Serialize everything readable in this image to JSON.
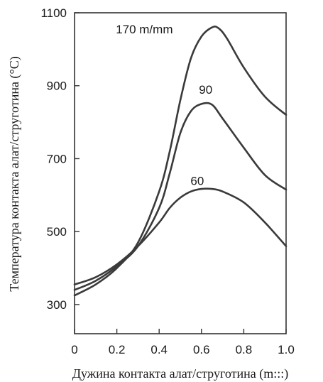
{
  "chart_data": {
    "type": "line",
    "title": "",
    "xlabel": "Дужина контакта алат/струготина (m:::)",
    "ylabel": "Температура контакта алат/струготина (°C)",
    "xlim": [
      0,
      1.0
    ],
    "ylim": [
      220,
      1100
    ],
    "x_ticks": [
      0,
      0.2,
      0.4,
      0.6,
      0.8,
      1.0
    ],
    "x_tick_labels": [
      "0",
      "0.2",
      "0.4",
      "0.6",
      "0.8",
      "1.0"
    ],
    "y_ticks": [
      300,
      500,
      700,
      900,
      1100
    ],
    "y_tick_labels": [
      "300",
      "500",
      "700",
      "900",
      "1100"
    ],
    "grid": false,
    "series": [
      {
        "name": "170 m/mm",
        "label_at": [
          0.33,
          1055
        ],
        "x": [
          0,
          0.1,
          0.2,
          0.3,
          0.4,
          0.45,
          0.5,
          0.55,
          0.6,
          0.65,
          0.68,
          0.72,
          0.8,
          0.9,
          1.0
        ],
        "y": [
          325,
          355,
          400,
          470,
          610,
          720,
          860,
          975,
          1035,
          1060,
          1058,
          1030,
          950,
          870,
          820
        ]
      },
      {
        "name": "90",
        "label_at": [
          0.62,
          890
        ],
        "x": [
          0,
          0.1,
          0.2,
          0.3,
          0.4,
          0.45,
          0.5,
          0.55,
          0.6,
          0.65,
          0.7,
          0.8,
          0.9,
          1.0
        ],
        "y": [
          340,
          365,
          405,
          460,
          565,
          660,
          770,
          830,
          850,
          848,
          810,
          730,
          655,
          615
        ]
      },
      {
        "name": "60",
        "label_at": [
          0.58,
          640
        ],
        "x": [
          0,
          0.1,
          0.2,
          0.3,
          0.4,
          0.45,
          0.5,
          0.55,
          0.6,
          0.65,
          0.7,
          0.8,
          0.9,
          1.0
        ],
        "y": [
          355,
          375,
          410,
          460,
          525,
          565,
          593,
          610,
          617,
          617,
          610,
          580,
          525,
          460
        ]
      }
    ]
  }
}
